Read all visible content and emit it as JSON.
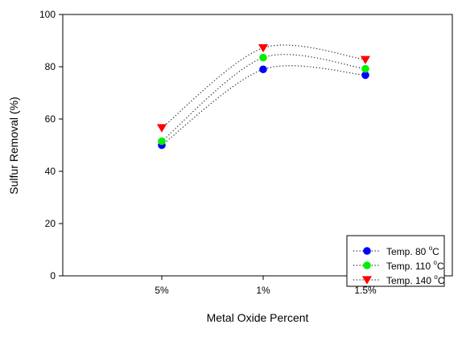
{
  "chart_data": {
    "type": "scatter",
    "categories": [
      "5%",
      "1%",
      "1.5%"
    ],
    "xlabel": "Metal Oxide Percent",
    "ylabel": "Sulfur Removal (%)",
    "ylim": [
      0,
      100
    ],
    "yticks": [
      0,
      20,
      40,
      60,
      80,
      100
    ],
    "grid": false,
    "legend": "bottom-right",
    "series": [
      {
        "name_prefix": "Temp. 80 ",
        "name_unit": "C",
        "marker": "circle",
        "color": "#0000ff",
        "values": [
          50.0,
          79.0,
          76.8
        ]
      },
      {
        "name_prefix": "Temp. 110 ",
        "name_unit": "C",
        "marker": "circle",
        "color": "#00ee00",
        "values": [
          51.5,
          83.5,
          79.2
        ]
      },
      {
        "name_prefix": "Temp. 140 ",
        "name_unit": "C",
        "marker": "triangle-down",
        "color": "#ff0000",
        "values": [
          56.6,
          87.2,
          82.7
        ]
      }
    ],
    "degree_symbol": "o"
  }
}
